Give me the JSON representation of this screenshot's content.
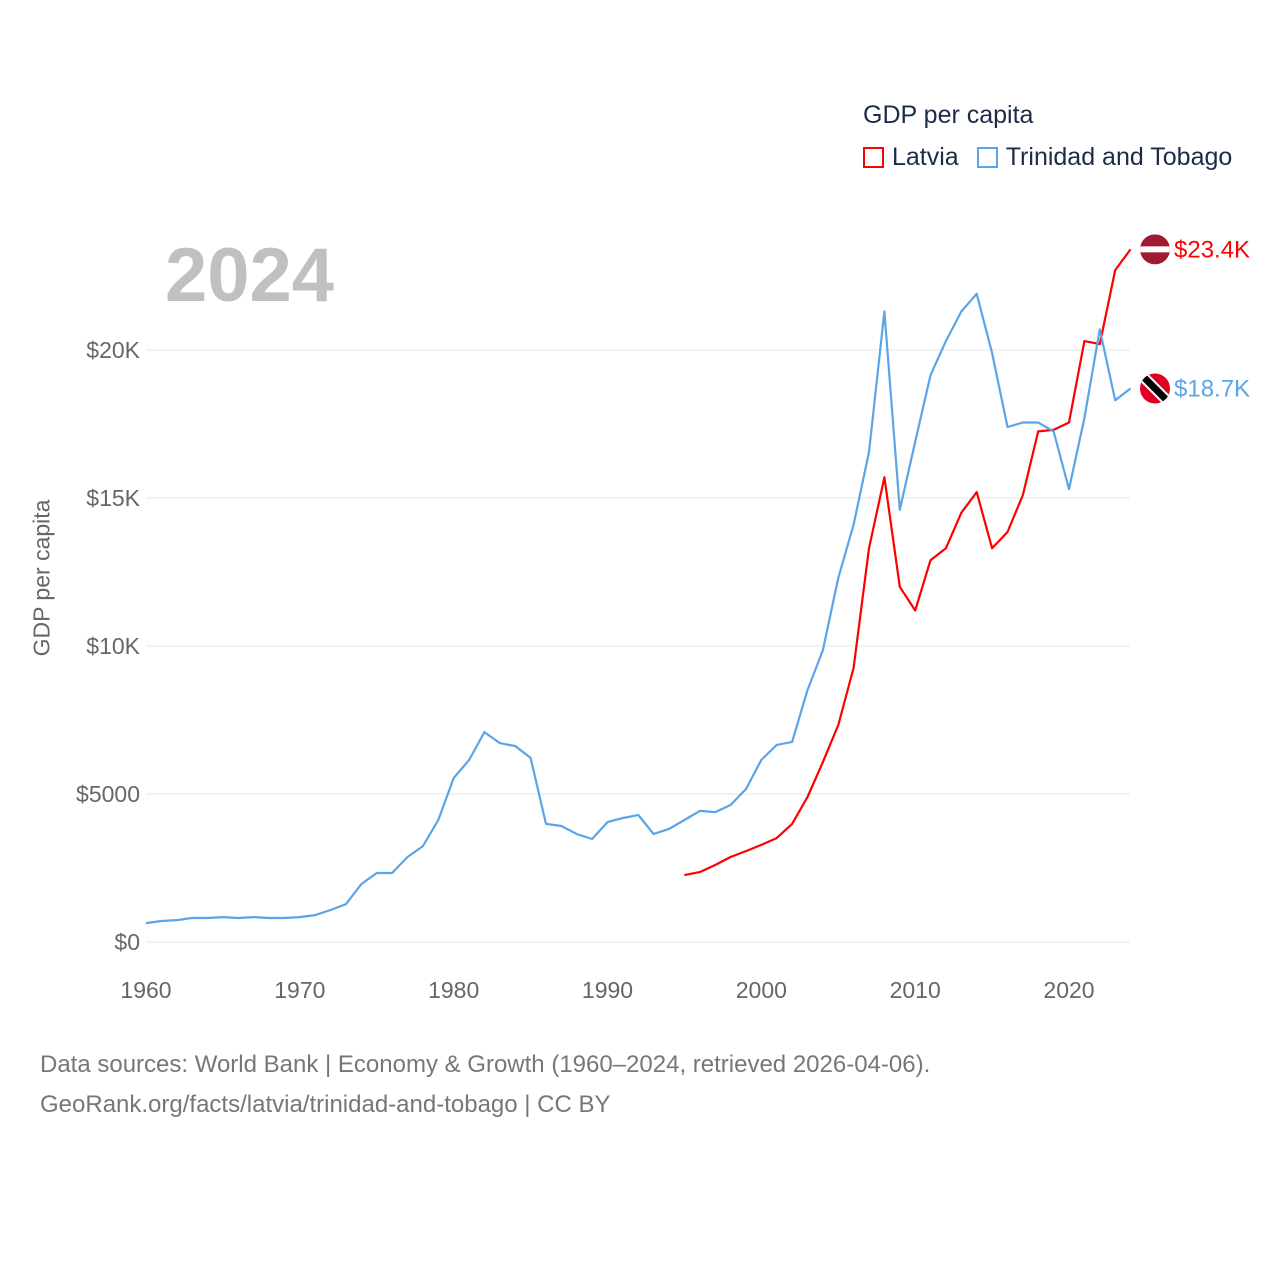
{
  "chart_data": {
    "type": "line",
    "title": "GDP per capita",
    "year_label": "2024",
    "ylabel": "GDP per capita",
    "xlabel": "",
    "xlim": [
      1960,
      2024
    ],
    "ylim": [
      0,
      23400
    ],
    "x_ticks": [
      1960,
      1970,
      1980,
      1990,
      2000,
      2010,
      2020
    ],
    "x_tick_labels": [
      "1960",
      "1970",
      "1980",
      "1990",
      "2000",
      "2010",
      "2020"
    ],
    "y_ticks": [
      0,
      5000,
      10000,
      15000,
      20000
    ],
    "y_tick_labels": [
      "$0",
      "$5000",
      "$10K",
      "$15K",
      "$20K"
    ],
    "grid": true,
    "legend_position": "top-right",
    "series": [
      {
        "name": "Latvia",
        "color": "#ff0000",
        "end_label": "$23.4K",
        "start_year": 1995,
        "values": [
          2260,
          2360,
          2600,
          2870,
          3070,
          3280,
          3510,
          3990,
          4900,
          6080,
          7330,
          9260,
          13300,
          15700,
          12000,
          11200,
          12900,
          13300,
          14500,
          15200,
          13300,
          13850,
          15100,
          17250,
          17300,
          17550,
          20300,
          20200,
          22700,
          23400
        ]
      },
      {
        "name": "Trinidad and Tobago",
        "color": "#5ba4e8",
        "end_label": "$18.7K",
        "start_year": 1960,
        "values": [
          640,
          710,
          740,
          810,
          810,
          840,
          810,
          840,
          810,
          810,
          840,
          910,
          1080,
          1280,
          1960,
          2330,
          2330,
          2870,
          3240,
          4120,
          5540,
          6150,
          7090,
          6720,
          6620,
          6220,
          3990,
          3920,
          3650,
          3480,
          4050,
          4190,
          4290,
          3650,
          3820,
          4120,
          4430,
          4390,
          4630,
          5170,
          6150,
          6660,
          6760,
          8510,
          9860,
          12300,
          14100,
          16550,
          21300,
          14600,
          16900,
          19150,
          20300,
          21300,
          21900,
          19900,
          17400,
          17550,
          17550,
          17250,
          15300,
          17700,
          20700,
          18300,
          18700
        ]
      }
    ]
  },
  "footer": {
    "line1": "Data sources: World Bank | Economy & Growth (1960–2024, retrieved 2026-04-06).",
    "line2": "GeoRank.org/facts/latvia/trinidad-and-tobago | CC BY"
  }
}
